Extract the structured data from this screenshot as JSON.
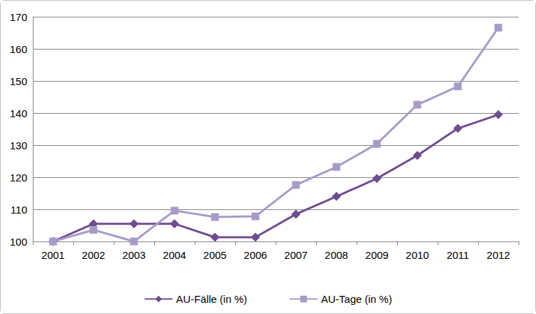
{
  "chart_data": {
    "type": "line",
    "categories": [
      "2001",
      "2002",
      "2003",
      "2004",
      "2005",
      "2006",
      "2007",
      "2008",
      "2009",
      "2010",
      "2011",
      "2012"
    ],
    "series": [
      {
        "name": "AU-Fälle (in %)",
        "color": "#6f4c8f",
        "marker": "diamond",
        "values": [
          100,
          105.5,
          105.5,
          105.5,
          101.3,
          101.3,
          108.5,
          114,
          119.6,
          126.8,
          135.2,
          139.5
        ]
      },
      {
        "name": "AU-Tage (in %)",
        "color": "#a99bc8",
        "marker": "square",
        "values": [
          100,
          103.6,
          100,
          109.6,
          107.6,
          107.8,
          117.6,
          123.2,
          130.4,
          142.6,
          148.3,
          166.6
        ]
      }
    ],
    "ylim": [
      100,
      170
    ],
    "yticks": [
      100,
      110,
      120,
      130,
      140,
      150,
      160,
      170
    ],
    "grid": true,
    "legend": "bottom"
  }
}
